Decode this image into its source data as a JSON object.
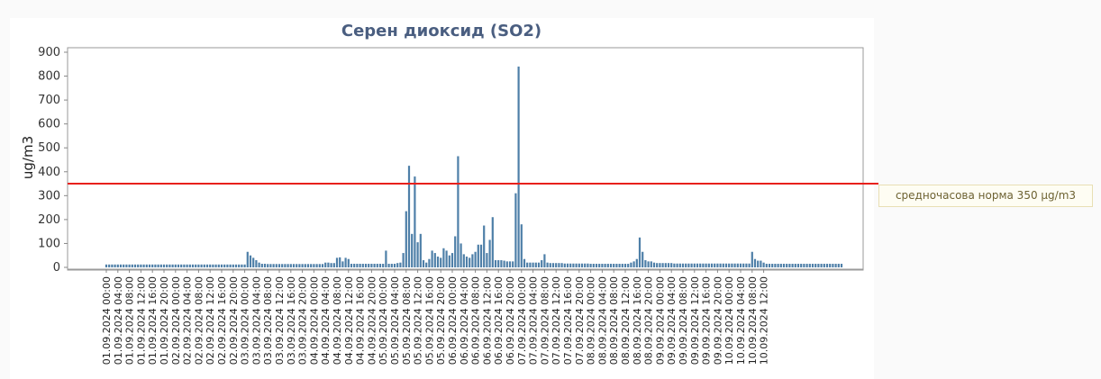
{
  "chart_data": {
    "type": "bar",
    "title": "Серен диоксид (SO2)",
    "xlabel": "",
    "ylabel": "ug/m3",
    "ylim": [
      0,
      900
    ],
    "yticks": [
      0,
      100,
      200,
      300,
      400,
      500,
      600,
      700,
      800,
      900
    ],
    "grid": false,
    "threshold": {
      "value": 350,
      "label": "средночасова норма 350 μg/m3",
      "color": "#e8201c"
    },
    "bar_color": "#4e7fa8",
    "tick_labels": [
      "01.09.2024 00:00",
      "01.09.2024 04:00",
      "01.09.2024 08:00",
      "01.09.2024 12:00",
      "01.09.2024 16:00",
      "01.09.2024 20:00",
      "02.09.2024 00:00",
      "02.09.2024 04:00",
      "02.09.2024 08:00",
      "02.09.2024 12:00",
      "02.09.2024 16:00",
      "02.09.2024 20:00",
      "03.09.2024 00:00",
      "03.09.2024 04:00",
      "03.09.2024 08:00",
      "03.09.2024 12:00",
      "03.09.2024 16:00",
      "03.09.2024 20:00",
      "04.09.2024 00:00",
      "04.09.2024 04:00",
      "04.09.2024 08:00",
      "04.09.2024 12:00",
      "04.09.2024 16:00",
      "04.09.2024 20:00",
      "05.09.2024 00:00",
      "05.09.2024 04:00",
      "05.09.2024 08:00",
      "05.09.2024 12:00",
      "05.09.2024 16:00",
      "05.09.2024 20:00",
      "06.09.2024 00:00",
      "06.09.2024 04:00",
      "06.09.2024 08:00",
      "06.09.2024 12:00",
      "06.09.2024 16:00",
      "06.09.2024 20:00",
      "07.09.2024 00:00",
      "07.09.2024 04:00",
      "07.09.2024 08:00",
      "07.09.2024 12:00",
      "07.09.2024 16:00",
      "07.09.2024 20:00",
      "08.09.2024 00:00",
      "08.09.2024 04:00",
      "08.09.2024 08:00",
      "08.09.2024 12:00",
      "08.09.2024 16:00",
      "08.09.2024 20:00",
      "09.09.2024 00:00",
      "09.09.2024 04:00",
      "09.09.2024 08:00",
      "09.09.2024 12:00",
      "09.09.2024 16:00",
      "09.09.2024 20:00",
      "10.09.2024 00:00",
      "10.09.2024 04:00",
      "10.09.2024 08:00",
      "10.09.2024 12:00"
    ],
    "values": [
      12,
      12,
      12,
      12,
      12,
      12,
      12,
      12,
      12,
      12,
      12,
      12,
      12,
      12,
      12,
      12,
      12,
      12,
      12,
      12,
      12,
      12,
      12,
      12,
      12,
      12,
      12,
      12,
      12,
      12,
      12,
      12,
      12,
      12,
      12,
      12,
      12,
      12,
      12,
      12,
      12,
      12,
      12,
      12,
      12,
      12,
      12,
      12,
      12,
      65,
      50,
      40,
      30,
      20,
      15,
      15,
      14,
      14,
      14,
      14,
      14,
      14,
      14,
      14,
      14,
      14,
      14,
      14,
      14,
      14,
      14,
      14,
      14,
      14,
      14,
      14,
      20,
      20,
      18,
      18,
      40,
      42,
      25,
      40,
      35,
      15,
      15,
      15,
      15,
      15,
      15,
      15,
      15,
      15,
      15,
      15,
      15,
      70,
      15,
      15,
      15,
      18,
      20,
      60,
      235,
      425,
      140,
      380,
      105,
      140,
      30,
      20,
      35,
      70,
      60,
      45,
      40,
      80,
      70,
      50,
      60,
      130,
      465,
      100,
      55,
      45,
      40,
      55,
      65,
      95,
      95,
      175,
      60,
      115,
      210,
      30,
      30,
      30,
      28,
      25,
      25,
      25,
      310,
      840,
      180,
      35,
      20,
      20,
      20,
      20,
      20,
      30,
      55,
      20,
      18,
      18,
      18,
      18,
      18,
      16,
      16,
      16,
      16,
      16,
      16,
      16,
      16,
      16,
      15,
      15,
      15,
      15,
      15,
      15,
      15,
      15,
      15,
      15,
      15,
      15,
      15,
      15,
      20,
      25,
      35,
      125,
      65,
      30,
      25,
      25,
      20,
      18,
      18,
      18,
      18,
      18,
      18,
      16,
      16,
      16,
      16,
      16,
      16,
      16,
      16,
      16,
      16,
      16,
      16,
      16,
      16,
      16,
      16,
      16,
      16,
      16,
      16,
      16,
      16,
      16,
      16,
      16,
      16,
      16,
      65,
      35,
      28,
      28,
      20,
      15,
      15,
      15,
      15,
      15,
      15,
      15,
      15,
      15,
      15,
      15,
      15,
      15,
      15,
      15,
      15,
      15,
      15,
      15,
      15,
      15,
      15,
      15,
      15,
      15,
      15,
      15
    ]
  }
}
